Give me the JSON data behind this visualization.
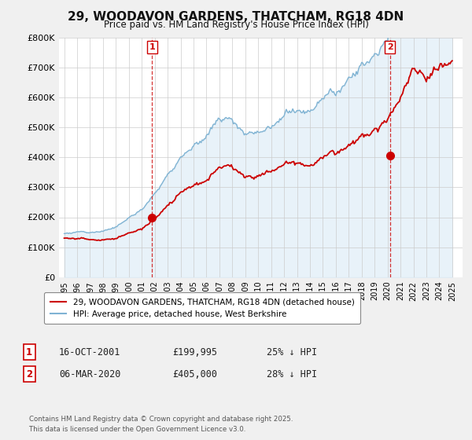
{
  "title": "29, WOODAVON GARDENS, THATCHAM, RG18 4DN",
  "subtitle": "Price paid vs. HM Land Registry's House Price Index (HPI)",
  "ylim": [
    0,
    800000
  ],
  "yticks": [
    0,
    100000,
    200000,
    300000,
    400000,
    500000,
    600000,
    700000,
    800000
  ],
  "ytick_labels": [
    "£0",
    "£100K",
    "£200K",
    "£300K",
    "£400K",
    "£500K",
    "£600K",
    "£700K",
    "£800K"
  ],
  "sale1_date": 2001.79,
  "sale1_price": 199995,
  "sale1_label": "1",
  "sale2_date": 2020.18,
  "sale2_price": 405000,
  "sale2_label": "2",
  "hpi_color": "#7fb3d3",
  "hpi_fill_color": "#daeaf5",
  "price_color": "#cc0000",
  "sale_marker_color": "#cc0000",
  "vline_color": "#cc0000",
  "legend_label_price": "29, WOODAVON GARDENS, THATCHAM, RG18 4DN (detached house)",
  "legend_label_hpi": "HPI: Average price, detached house, West Berkshire",
  "annot1_num": "1",
  "annot1_date": "16-OCT-2001",
  "annot1_price": "£199,995",
  "annot1_hpi": "25% ↓ HPI",
  "annot2_num": "2",
  "annot2_date": "06-MAR-2020",
  "annot2_price": "£405,000",
  "annot2_hpi": "28% ↓ HPI",
  "footnote": "Contains HM Land Registry data © Crown copyright and database right 2025.\nThis data is licensed under the Open Government Licence v3.0.",
  "bg_color": "#f0f0f0",
  "plot_bg_color": "#ffffff"
}
